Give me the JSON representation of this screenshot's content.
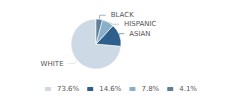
{
  "chart_data": {
    "type": "pie",
    "categories": [
      "WHITE",
      "ASIAN",
      "HISPANIC",
      "BLACK"
    ],
    "values": [
      73.6,
      14.6,
      7.8,
      4.1
    ],
    "value_labels": [
      "73.6%",
      "14.6%",
      "7.8%",
      "4.1%"
    ],
    "colors": [
      "#cdd9e5",
      "#2d5f8a",
      "#8aafc8",
      "#607d99"
    ],
    "legend": "bottom"
  }
}
